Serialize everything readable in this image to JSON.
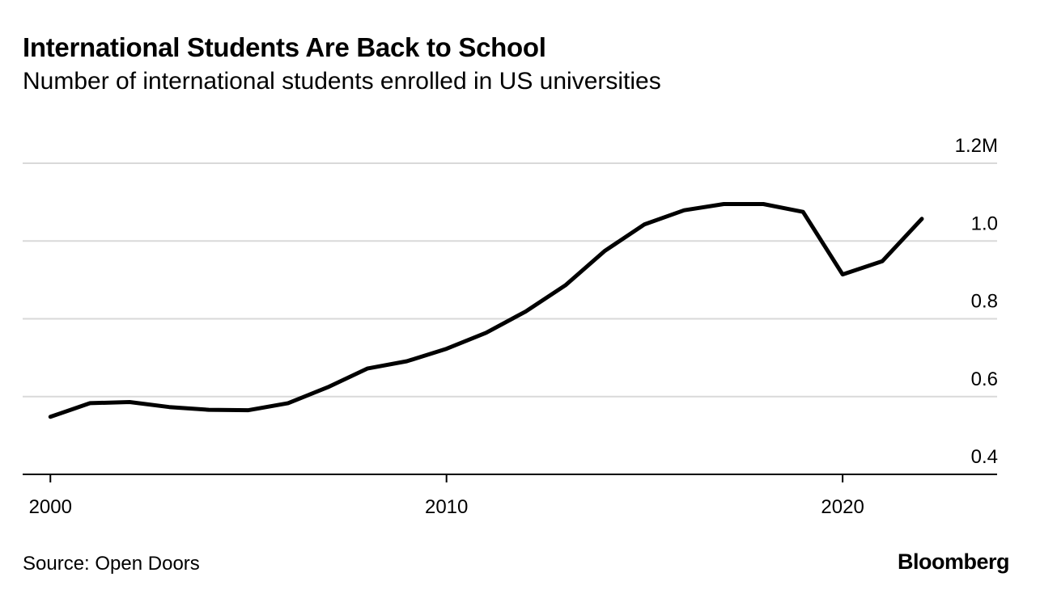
{
  "header": {
    "title": "International Students Are Back to School",
    "subtitle": "Number of international students enrolled in US universities"
  },
  "footer": {
    "source": "Source: Open Doors",
    "brand": "Bloomberg"
  },
  "colors": {
    "line": "#000000",
    "grid": "#d9d9d9",
    "axis": "#000000",
    "background": "#ffffff"
  },
  "chart_data": {
    "type": "line",
    "title": "International Students Are Back to School",
    "subtitle": "Number of international students enrolled in US universities",
    "xlabel": "",
    "ylabel": "",
    "unit": "M",
    "grid": true,
    "y_axis_side": "right",
    "xlim": [
      1999.3,
      2023.9
    ],
    "ylim": [
      0.4,
      1.2
    ],
    "x_ticks": [
      2000,
      2010,
      2020
    ],
    "x_tick_labels": [
      "2000",
      "2010",
      "2020"
    ],
    "y_ticks": [
      0.4,
      0.6,
      0.8,
      1.0,
      1.2
    ],
    "y_tick_labels": [
      "0.4",
      "0.6",
      "0.8",
      "1.0",
      "1.2M"
    ],
    "series": [
      {
        "name": "International students enrolled",
        "x": [
          2000,
          2001,
          2002,
          2003,
          2004,
          2005,
          2006,
          2007,
          2008,
          2009,
          2010,
          2011,
          2012,
          2013,
          2014,
          2015,
          2016,
          2017,
          2018,
          2019,
          2020,
          2021,
          2022
        ],
        "values": [
          0.548,
          0.583,
          0.586,
          0.573,
          0.566,
          0.565,
          0.583,
          0.624,
          0.672,
          0.691,
          0.723,
          0.764,
          0.819,
          0.886,
          0.975,
          1.043,
          1.079,
          1.095,
          1.095,
          1.075,
          0.914,
          0.948,
          1.057
        ]
      }
    ]
  }
}
